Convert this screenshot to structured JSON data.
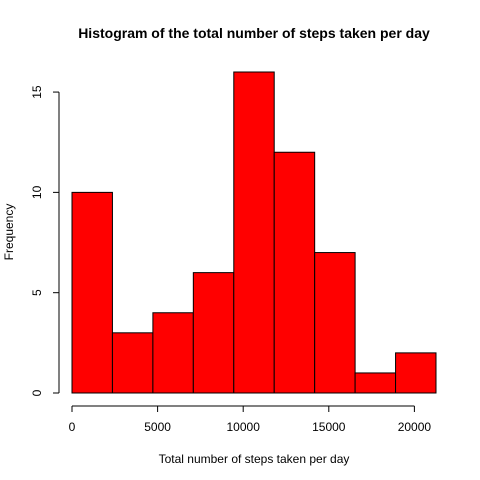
{
  "chart_data": {
    "type": "bar",
    "title": "Histogram of the total number of steps taken per day",
    "xlabel": "Total number of steps taken per day",
    "ylabel": "Frequency",
    "bins": [
      {
        "start": 0,
        "end": 2362,
        "count": 10
      },
      {
        "start": 2362,
        "end": 4725,
        "count": 3
      },
      {
        "start": 4725,
        "end": 7087,
        "count": 4
      },
      {
        "start": 7087,
        "end": 9450,
        "count": 6
      },
      {
        "start": 9450,
        "end": 11812,
        "count": 16
      },
      {
        "start": 11812,
        "end": 14175,
        "count": 12
      },
      {
        "start": 14175,
        "end": 16537,
        "count": 7
      },
      {
        "start": 16537,
        "end": 18900,
        "count": 1
      },
      {
        "start": 18900,
        "end": 21262,
        "count": 2
      }
    ],
    "xticks": [
      0,
      5000,
      10000,
      15000,
      20000
    ],
    "yticks": [
      0,
      5,
      10,
      15
    ],
    "xlim": [
      0,
      21262
    ],
    "ylim": [
      0,
      16
    ],
    "bar_color": "#ff0000",
    "grid": false
  }
}
